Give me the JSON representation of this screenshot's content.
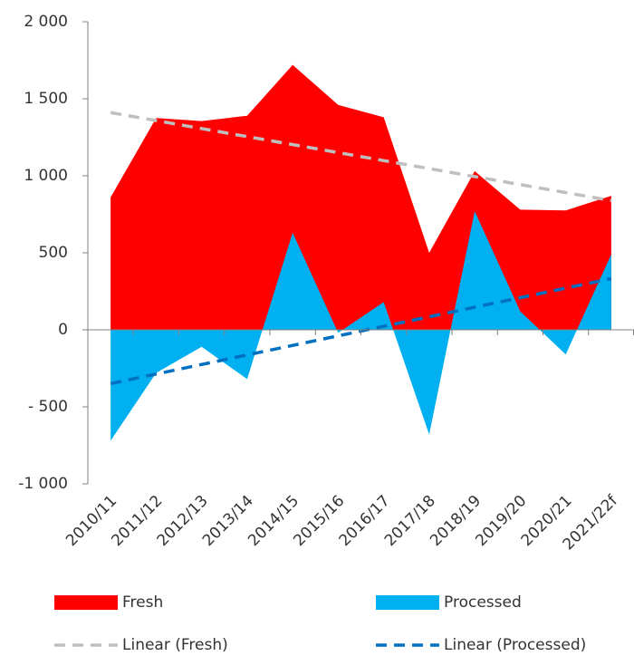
{
  "chart_data": {
    "type": "area",
    "categories": [
      "2010/11",
      "2011/12",
      "2012/13",
      "2013/14",
      "2014/15",
      "2015/16",
      "2016/17",
      "2017/18",
      "2018/19",
      "2019/20",
      "2020/21",
      "2021/22f"
    ],
    "series": [
      {
        "name": "Fresh",
        "color": "#ff0000",
        "values": [
          860,
          1375,
          1355,
          1390,
          1720,
          1460,
          1380,
          500,
          1030,
          780,
          775,
          870
        ],
        "trendline": {
          "name": "Linear (Fresh)",
          "color": "#bfbfbf"
        }
      },
      {
        "name": "Processed",
        "color": "#00b0f0",
        "values": [
          -720,
          -280,
          -110,
          -320,
          630,
          -20,
          180,
          -680,
          770,
          120,
          -160,
          490
        ],
        "trendline": {
          "name": "Linear (Processed)",
          "color": "#0070c0"
        }
      }
    ],
    "ylim": [
      -1000,
      2000
    ],
    "yticks": [
      {
        "value": -1000,
        "label": "-1 000"
      },
      {
        "value": -500,
        "label": "- 500"
      },
      0,
      500,
      {
        "value": 1000,
        "label": "1 000"
      },
      {
        "value": 1500,
        "label": "1 500"
      },
      {
        "value": 2000,
        "label": "2 000"
      }
    ],
    "grid": false
  }
}
